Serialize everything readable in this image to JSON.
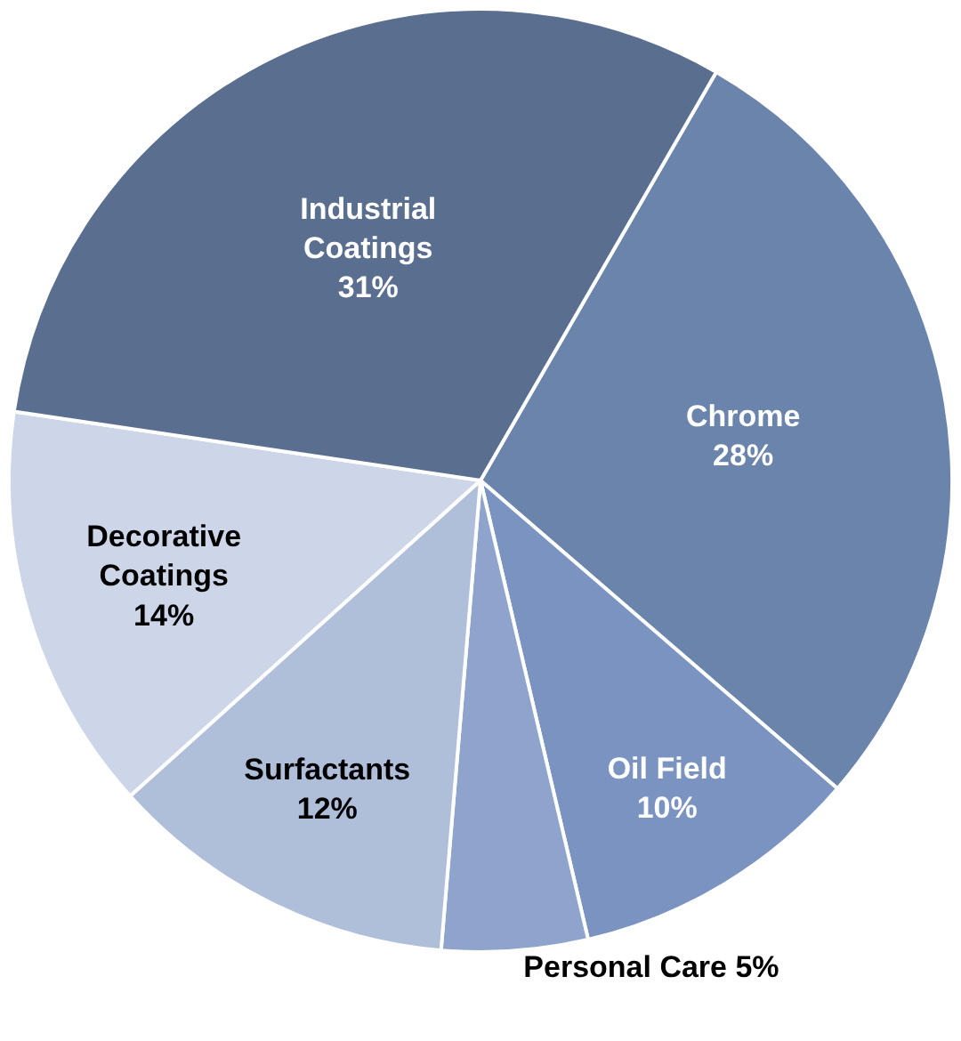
{
  "chart_data": {
    "type": "pie",
    "categories": [
      "Chrome",
      "Oil Field",
      "Personal Care",
      "Surfactants",
      "Decorative Coatings",
      "Industrial Coatings"
    ],
    "values": [
      28,
      10,
      5,
      12,
      14,
      31
    ],
    "value_labels": [
      "28%",
      "10%",
      "5%",
      "12%",
      "14%",
      "31%"
    ],
    "colors": [
      "#6b84ab",
      "#7a93c0",
      "#8ea4cc",
      "#b0bfd9",
      "#cdd6e8",
      "#5a6e8f"
    ],
    "legend": false
  }
}
